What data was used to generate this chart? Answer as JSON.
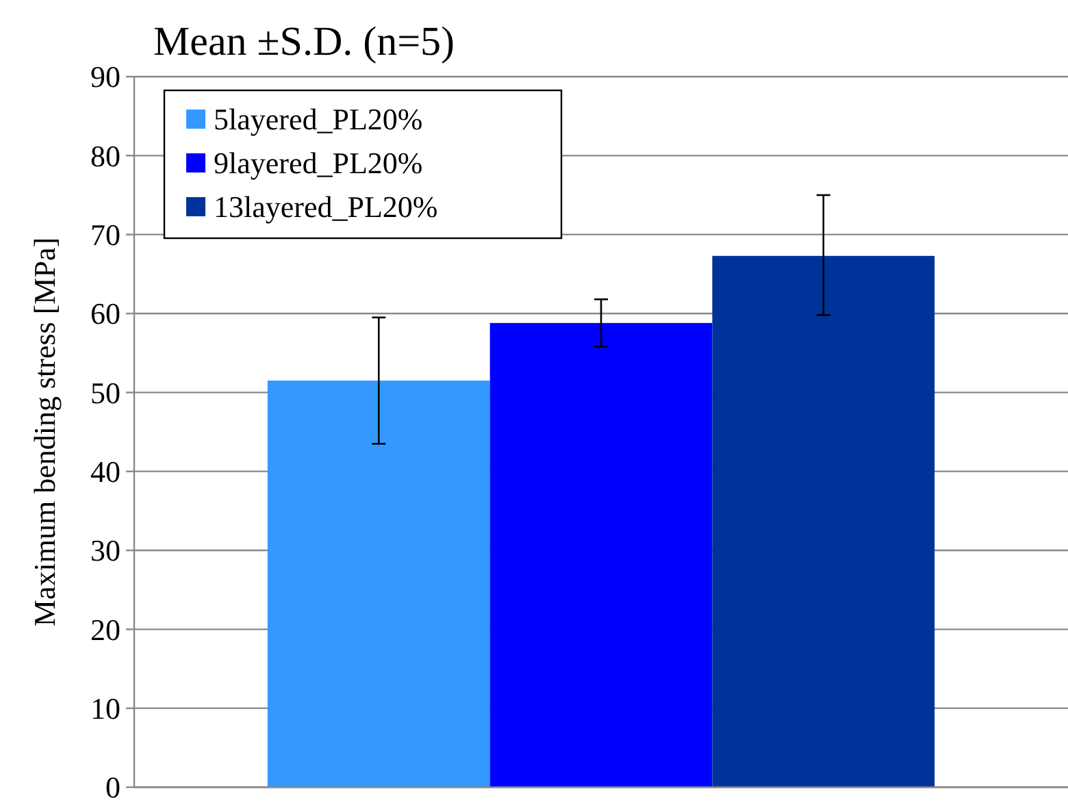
{
  "chart_data": {
    "type": "bar",
    "title": "Mean ±S.D. (n=5)",
    "ylabel": "Maximum bending stress [MPa]",
    "categories": [
      null
    ],
    "series": [
      {
        "name": "5layered_PL20%",
        "color": "#3399ff",
        "values": [
          51.5
        ],
        "errors": [
          [
            43.5,
            59.5
          ]
        ]
      },
      {
        "name": "9layered_PL20%",
        "color": "#0000ff",
        "values": [
          58.8
        ],
        "errors": [
          [
            55.8,
            61.8
          ]
        ]
      },
      {
        "name": "13layered_PL20%",
        "color": "#003399",
        "values": [
          67.3
        ],
        "errors": [
          [
            59.8,
            75
          ]
        ]
      }
    ],
    "ylim": [
      0,
      90
    ],
    "yticks": [
      0,
      10,
      20,
      30,
      40,
      50,
      60,
      70,
      80,
      90
    ],
    "grid": "y",
    "legend": "top left"
  }
}
